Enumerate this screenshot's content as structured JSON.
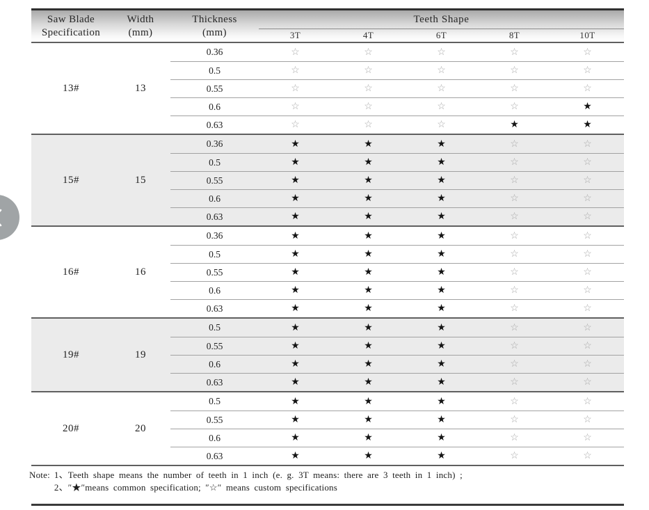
{
  "table": {
    "headers": {
      "spec": [
        "Saw Blade",
        "Specification"
      ],
      "width": [
        "Width",
        "(mm)"
      ],
      "thickness": [
        "Thickness",
        "(mm)"
      ],
      "teeth_shape": "Teeth Shape",
      "teeth_columns": [
        "3T",
        "4T",
        "6T",
        "8T",
        "10T"
      ]
    },
    "legend": {
      "common_symbol": "★",
      "custom_symbol": "☆",
      "common_meaning": "common specification",
      "custom_meaning": "custom specifications"
    },
    "groups": [
      {
        "spec": "13#",
        "width": "13",
        "shaded": false,
        "rows": [
          {
            "thickness": "0.36",
            "teeth": [
              "☆",
              "☆",
              "☆",
              "☆",
              "☆"
            ]
          },
          {
            "thickness": "0.5",
            "teeth": [
              "☆",
              "☆",
              "☆",
              "☆",
              "☆"
            ]
          },
          {
            "thickness": "0.55",
            "teeth": [
              "☆",
              "☆",
              "☆",
              "☆",
              "☆"
            ]
          },
          {
            "thickness": "0.6",
            "teeth": [
              "☆",
              "☆",
              "☆",
              "☆",
              "★"
            ]
          },
          {
            "thickness": "0.63",
            "teeth": [
              "☆",
              "☆",
              "☆",
              "★",
              "★"
            ]
          }
        ]
      },
      {
        "spec": "15#",
        "width": "15",
        "shaded": true,
        "rows": [
          {
            "thickness": "0.36",
            "teeth": [
              "★",
              "★",
              "★",
              "☆",
              "☆"
            ]
          },
          {
            "thickness": "0.5",
            "teeth": [
              "★",
              "★",
              "★",
              "☆",
              "☆"
            ]
          },
          {
            "thickness": "0.55",
            "teeth": [
              "★",
              "★",
              "★",
              "☆",
              "☆"
            ]
          },
          {
            "thickness": "0.6",
            "teeth": [
              "★",
              "★",
              "★",
              "☆",
              "☆"
            ]
          },
          {
            "thickness": "0.63",
            "teeth": [
              "★",
              "★",
              "★",
              "☆",
              "☆"
            ]
          }
        ]
      },
      {
        "spec": "16#",
        "width": "16",
        "shaded": false,
        "rows": [
          {
            "thickness": "0.36",
            "teeth": [
              "★",
              "★",
              "★",
              "☆",
              "☆"
            ]
          },
          {
            "thickness": "0.5",
            "teeth": [
              "★",
              "★",
              "★",
              "☆",
              "☆"
            ]
          },
          {
            "thickness": "0.55",
            "teeth": [
              "★",
              "★",
              "★",
              "☆",
              "☆"
            ]
          },
          {
            "thickness": "0.6",
            "teeth": [
              "★",
              "★",
              "★",
              "☆",
              "☆"
            ]
          },
          {
            "thickness": "0.63",
            "teeth": [
              "★",
              "★",
              "★",
              "☆",
              "☆"
            ]
          }
        ]
      },
      {
        "spec": "19#",
        "width": "19",
        "shaded": true,
        "rows": [
          {
            "thickness": "0.5",
            "teeth": [
              "★",
              "★",
              "★",
              "☆",
              "☆"
            ]
          },
          {
            "thickness": "0.55",
            "teeth": [
              "★",
              "★",
              "★",
              "☆",
              "☆"
            ]
          },
          {
            "thickness": "0.6",
            "teeth": [
              "★",
              "★",
              "★",
              "☆",
              "☆"
            ]
          },
          {
            "thickness": "0.63",
            "teeth": [
              "★",
              "★",
              "★",
              "☆",
              "☆"
            ]
          }
        ]
      },
      {
        "spec": "20#",
        "width": "20",
        "shaded": false,
        "rows": [
          {
            "thickness": "0.5",
            "teeth": [
              "★",
              "★",
              "★",
              "☆",
              "☆"
            ]
          },
          {
            "thickness": "0.55",
            "teeth": [
              "★",
              "★",
              "★",
              "☆",
              "☆"
            ]
          },
          {
            "thickness": "0.6",
            "teeth": [
              "★",
              "★",
              "★",
              "☆",
              "☆"
            ]
          },
          {
            "thickness": "0.63",
            "teeth": [
              "★",
              "★",
              "★",
              "☆",
              "☆"
            ]
          }
        ]
      }
    ]
  },
  "note": {
    "prefix": "Note:",
    "items": [
      "1、Teeth shape means the number of teeth in 1 inch (e. g.  3T   means: there are 3 teeth in 1 inch) ;",
      "2、″★″means common specification;  ″☆″ means custom specifications"
    ]
  },
  "nav": {
    "prev_button_icon": "chevron-left"
  },
  "colors": {
    "shaded_row_bg": "#ebebeb",
    "filled_star": "#141414",
    "hollow_star": "#a8a8a8",
    "rule_dark": "#2f2f2f",
    "line_medium": "#5f5f5f",
    "line_light": "#a2a2a2",
    "header_gradient_top": "#a9a9a9",
    "prev_button_bg": "#a0a4a6"
  }
}
